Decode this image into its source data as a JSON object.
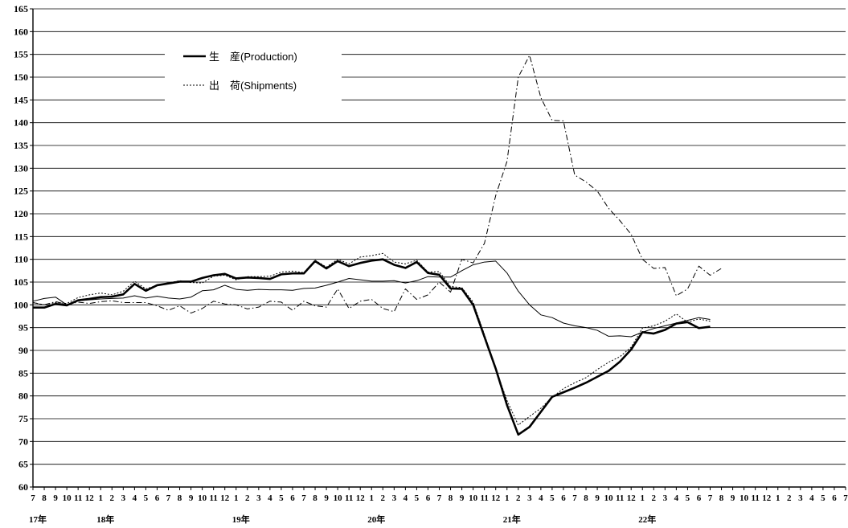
{
  "chart_data": {
    "type": "line",
    "title": "",
    "xlabel": "",
    "ylabel": "",
    "ylim": [
      60,
      165
    ],
    "yticks": [
      60,
      65,
      70,
      75,
      80,
      85,
      90,
      95,
      100,
      105,
      110,
      115,
      120,
      125,
      130,
      135,
      140,
      145,
      150,
      155,
      160,
      165
    ],
    "grid": true,
    "legend_position": "top-left",
    "month_labels": [
      "7",
      "8",
      "9",
      "10",
      "11",
      "12",
      "1",
      "2",
      "3",
      "4",
      "5",
      "6",
      "7",
      "8",
      "9",
      "10",
      "11",
      "12",
      "1",
      "2",
      "3",
      "4",
      "5",
      "6",
      "7",
      "8",
      "9",
      "10",
      "11",
      "12",
      "1",
      "2",
      "3",
      "4",
      "5",
      "6",
      "7",
      "8",
      "9",
      "10",
      "11",
      "12",
      "1",
      "2",
      "3",
      "4",
      "5",
      "6",
      "7",
      "8",
      "9",
      "10",
      "11",
      "12",
      "1",
      "2",
      "3",
      "4",
      "5",
      "6",
      "7",
      "8",
      "9",
      "10",
      "11",
      "12",
      "1",
      "2",
      "3",
      "4",
      "5",
      "6",
      "7"
    ],
    "year_labels": [
      {
        "label": "17年",
        "index": 0
      },
      {
        "label": "18年",
        "index": 6
      },
      {
        "label": "19年",
        "index": 18
      },
      {
        "label": "20年",
        "index": 30
      },
      {
        "label": "21年",
        "index": 42
      },
      {
        "label": "22年",
        "index": 54
      }
    ],
    "series": [
      {
        "name": "生　産(Production)",
        "style": "thick",
        "values": [
          99.4,
          99.4,
          100.2,
          99.9,
          101.0,
          101.3,
          101.7,
          101.8,
          102.3,
          104.6,
          103.1,
          104.3,
          104.7,
          105.1,
          105.1,
          105.9,
          106.5,
          106.8,
          105.8,
          106.0,
          105.9,
          105.7,
          106.7,
          106.9,
          106.9,
          109.6,
          108.0,
          109.6,
          108.5,
          109.2,
          109.7,
          110.0,
          108.8,
          108.1,
          109.4,
          107.0,
          106.6,
          103.6,
          103.5,
          100.0,
          93.0,
          86.0,
          78.0,
          71.5,
          73.2,
          76.5,
          79.8,
          80.8,
          81.8,
          82.9,
          84.2,
          85.5,
          87.5,
          90.2,
          94.0,
          93.7,
          94.5,
          95.9,
          96.2,
          94.9,
          95.2
        ]
      },
      {
        "name": "出　荷(Shipments)",
        "style": "dotted",
        "values": [
          100.5,
          100.0,
          100.5,
          100.3,
          101.6,
          102.2,
          102.6,
          102.2,
          103.0,
          105.2,
          103.5,
          104.3,
          104.8,
          105.3,
          104.9,
          104.8,
          106.3,
          106.5,
          105.5,
          106.2,
          106.2,
          106.3,
          107.2,
          107.4,
          107.1,
          109.8,
          108.3,
          110.0,
          109.0,
          110.5,
          110.8,
          111.3,
          109.4,
          109.0,
          109.8,
          107.2,
          107.3,
          104.0,
          103.8,
          100.6,
          93.5,
          86.0,
          79.0,
          73.6,
          75.5,
          77.3,
          79.7,
          81.6,
          82.9,
          84.0,
          85.8,
          87.4,
          88.6,
          90.7,
          94.9,
          95.4,
          96.4,
          98.0,
          96.2,
          96.9,
          96.4
        ]
      },
      {
        "name": "",
        "style": "thin",
        "values": [
          100.8,
          101.4,
          101.7,
          100.0,
          100.9,
          101.1,
          101.3,
          101.4,
          101.5,
          102.0,
          101.5,
          101.9,
          101.5,
          101.3,
          101.7,
          103.1,
          103.3,
          104.3,
          103.4,
          103.2,
          103.4,
          103.3,
          103.3,
          103.2,
          103.6,
          103.7,
          104.3,
          105.0,
          105.8,
          105.5,
          105.2,
          105.2,
          105.3,
          104.8,
          105.3,
          106.2,
          106.1,
          106.1,
          107.5,
          108.8,
          109.4,
          109.6,
          107.0,
          103.0,
          100.0,
          97.8,
          97.2,
          96.0,
          95.4,
          95.0,
          94.4,
          93.1,
          93.2,
          93.0,
          94.0,
          94.8,
          95.4,
          96.0,
          96.6,
          97.2,
          96.8
        ]
      },
      {
        "name": "",
        "style": "dashdot",
        "values": [
          100.5,
          100.0,
          100.7,
          100.1,
          100.6,
          100.3,
          100.7,
          100.9,
          100.5,
          100.5,
          100.5,
          99.8,
          98.8,
          99.8,
          98.2,
          99.2,
          100.8,
          100.2,
          100.0,
          99.1,
          99.5,
          100.8,
          100.6,
          98.8,
          100.8,
          99.8,
          99.5,
          103.5,
          99.2,
          100.8,
          101.2,
          99.2,
          98.5,
          103.5,
          101.2,
          102.2,
          105.0,
          102.8,
          110.0,
          109.2,
          113.5,
          124.0,
          131.5,
          150.0,
          154.8,
          145.5,
          140.5,
          140.4,
          128.5,
          127.0,
          125.0,
          121.2,
          118.5,
          115.5,
          110.0,
          108.0,
          108.2,
          102.0,
          103.5,
          108.5,
          106.5,
          108.0
        ]
      }
    ]
  }
}
